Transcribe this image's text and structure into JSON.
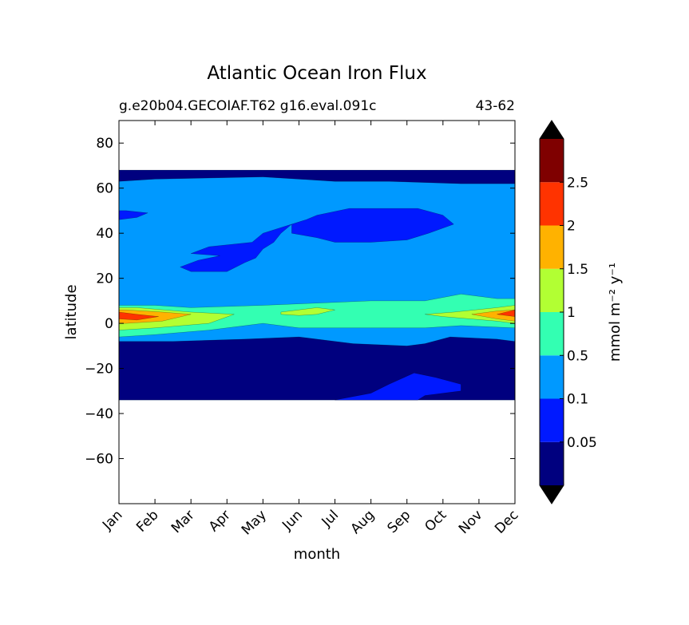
{
  "chart_data": {
    "type": "heatmap",
    "subtype": "filled-contour",
    "title": "Atlantic Ocean Iron Flux",
    "subtitle_left": "g.e20b04.GECOIAF.T62 g16.eval.091c",
    "subtitle_right": "43-62",
    "xlabel": "month",
    "ylabel": "latitude",
    "x_categories": [
      "Jan",
      "Feb",
      "Mar",
      "Apr",
      "May",
      "Jun",
      "Jul",
      "Aug",
      "Sep",
      "Oct",
      "Nov",
      "Dec"
    ],
    "ylim": [
      -80,
      90
    ],
    "y_ticks": [
      80,
      60,
      40,
      20,
      0,
      -20,
      -40,
      -60
    ],
    "y_tick_labels": [
      "80",
      "60",
      "40",
      "20",
      "0",
      "−20",
      "−40",
      "−60"
    ],
    "data_lat_range": [
      -34,
      68
    ],
    "colorbar": {
      "label": "mmol m⁻² y⁻¹",
      "tick_labels": [
        "0.05",
        "0.1",
        "0.5",
        "1",
        "1.5",
        "2",
        "2.5"
      ],
      "levels": [
        0.05,
        0.1,
        0.5,
        1,
        1.5,
        2,
        2.5
      ],
      "extend": "both",
      "under_color": "#000000",
      "over_color": "#000000",
      "bin_colors": [
        "#00007f",
        "#0019ff",
        "#0099ff",
        "#33ffb2",
        "#b2ff33",
        "#ffb200",
        "#ff3300",
        "#7f0000"
      ]
    },
    "regions": [
      {
        "label": "north-band",
        "value_bin": 0,
        "points": [
          [
            0.5,
            68
          ],
          [
            12.5,
            68
          ],
          [
            12.5,
            62
          ],
          [
            10.5,
            62
          ],
          [
            8.5,
            63
          ],
          [
            7,
            63
          ],
          [
            5,
            65
          ],
          [
            2,
            64
          ],
          [
            0.5,
            63
          ]
        ]
      },
      {
        "label": "north-atlantic-low",
        "value_bin": 1,
        "points": [
          [
            6.5,
            48
          ],
          [
            7.4,
            51
          ],
          [
            9.3,
            51
          ],
          [
            10.0,
            48
          ],
          [
            10.3,
            44
          ],
          [
            9.6,
            40
          ],
          [
            9.0,
            37
          ],
          [
            8.0,
            36
          ],
          [
            7.0,
            36
          ],
          [
            6.5,
            38
          ],
          [
            5.8,
            40
          ],
          [
            5.8,
            44
          ],
          [
            6.2,
            46
          ]
        ]
      },
      {
        "label": "north-atlantic-low-tail",
        "value_bin": 1,
        "points": [
          [
            5.8,
            44
          ],
          [
            5.5,
            40
          ],
          [
            5.3,
            36
          ],
          [
            5.0,
            33
          ],
          [
            4.8,
            29
          ],
          [
            4.5,
            27
          ],
          [
            4.0,
            23
          ],
          [
            3.0,
            23
          ],
          [
            2.7,
            25
          ],
          [
            3.2,
            28
          ],
          [
            3.8,
            30
          ],
          [
            3.0,
            31
          ],
          [
            3.5,
            34
          ],
          [
            4.7,
            36
          ],
          [
            5.0,
            40
          ]
        ]
      },
      {
        "label": "jan-low",
        "value_bin": 1,
        "points": [
          [
            0.5,
            50
          ],
          [
            1.2,
            50
          ],
          [
            1.8,
            49
          ],
          [
            1.5,
            47
          ],
          [
            0.5,
            46
          ]
        ]
      },
      {
        "label": "dec-low",
        "value_bin": 1,
        "points": [
          [
            12.0,
            49
          ],
          [
            12.5,
            50
          ],
          [
            12.5,
            44
          ],
          [
            12.2,
            45
          ]
        ]
      },
      {
        "label": "south-band",
        "value_bin": 0,
        "points": [
          [
            0.5,
            -8
          ],
          [
            2.5,
            -8
          ],
          [
            4.5,
            -7
          ],
          [
            6.0,
            -6
          ],
          [
            7.5,
            -9
          ],
          [
            9.0,
            -10
          ],
          [
            9.5,
            -9
          ],
          [
            10.2,
            -6
          ],
          [
            11.5,
            -7
          ],
          [
            12.5,
            -8
          ],
          [
            12.5,
            -34
          ],
          [
            0.5,
            -34
          ]
        ]
      },
      {
        "label": "south-tongue",
        "value_bin": 1,
        "points": [
          [
            7.0,
            -34
          ],
          [
            8.0,
            -31
          ],
          [
            8.5,
            -27
          ],
          [
            9.2,
            -22
          ],
          [
            9.8,
            -24
          ],
          [
            10.5,
            -27
          ],
          [
            10.5,
            -30
          ],
          [
            9.5,
            -32
          ],
          [
            9.3,
            -34
          ]
        ]
      },
      {
        "label": "equatorial-0.5",
        "value_bin": 3,
        "points": [
          [
            0.5,
            8
          ],
          [
            2.0,
            8
          ],
          [
            3.0,
            7
          ],
          [
            5.0,
            8
          ],
          [
            6.5,
            9
          ],
          [
            8.0,
            10
          ],
          [
            9.5,
            10
          ],
          [
            10.5,
            13
          ],
          [
            11.5,
            11
          ],
          [
            12.5,
            11
          ],
          [
            12.5,
            -2
          ],
          [
            10.5,
            -1
          ],
          [
            9.5,
            -2
          ],
          [
            8.0,
            -2
          ],
          [
            6.0,
            -2
          ],
          [
            5.0,
            0
          ],
          [
            3.5,
            -3
          ],
          [
            2.0,
            -5
          ],
          [
            0.5,
            -6
          ]
        ]
      },
      {
        "label": "winter-1.0",
        "value_bin": 4,
        "points": [
          [
            0.5,
            7
          ],
          [
            1.5,
            7
          ],
          [
            3.0,
            5
          ],
          [
            4.2,
            4
          ],
          [
            3.5,
            0
          ],
          [
            2.0,
            -2
          ],
          [
            0.5,
            -3
          ]
        ]
      },
      {
        "label": "jun-1.0",
        "value_bin": 4,
        "points": [
          [
            5.5,
            5
          ],
          [
            6.5,
            7
          ],
          [
            7.0,
            6
          ],
          [
            6.5,
            4
          ],
          [
            6.0,
            3.5
          ],
          [
            5.5,
            4
          ]
        ]
      },
      {
        "label": "dec-1.0",
        "value_bin": 4,
        "points": [
          [
            9.5,
            4
          ],
          [
            10.3,
            5
          ],
          [
            11.5,
            7
          ],
          [
            12.5,
            8
          ],
          [
            12.5,
            0
          ],
          [
            11.5,
            1
          ],
          [
            10.0,
            3
          ]
        ]
      },
      {
        "label": "jan-1.5",
        "value_bin": 5,
        "points": [
          [
            0.5,
            6
          ],
          [
            1.2,
            6
          ],
          [
            2.2,
            5
          ],
          [
            3.0,
            4
          ],
          [
            2.2,
            1
          ],
          [
            1.2,
            0
          ],
          [
            0.5,
            0
          ]
        ]
      },
      {
        "label": "dec-1.5",
        "value_bin": 5,
        "points": [
          [
            10.8,
            4
          ],
          [
            11.5,
            5.5
          ],
          [
            12.5,
            6
          ],
          [
            12.5,
            1
          ],
          [
            11.5,
            2
          ]
        ]
      },
      {
        "label": "jan-2.0",
        "value_bin": 6,
        "points": [
          [
            0.5,
            5
          ],
          [
            1.5,
            4
          ],
          [
            2.1,
            3
          ],
          [
            1.5,
            1.5
          ],
          [
            0.5,
            2
          ]
        ]
      },
      {
        "label": "dec-2.0",
        "value_bin": 6,
        "points": [
          [
            11.5,
            4
          ],
          [
            12.3,
            6
          ],
          [
            12.5,
            6
          ],
          [
            12.5,
            3
          ],
          [
            12.0,
            3
          ]
        ]
      }
    ]
  }
}
